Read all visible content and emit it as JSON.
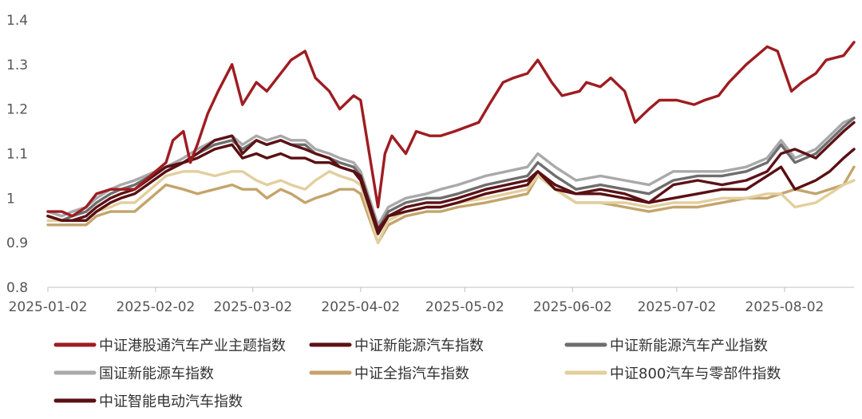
{
  "chart_data": {
    "type": "line",
    "title": "",
    "xlabel": "",
    "ylabel": "",
    "ylim": [
      0.8,
      1.4
    ],
    "yticks": [
      0.8,
      0.9,
      1,
      1.1,
      1.2,
      1.3,
      1.4
    ],
    "ytick_labels": [
      "0.8",
      "0.9",
      "1",
      "1.1",
      "1.2",
      "1.3",
      "1.4"
    ],
    "x_start": "2025-01-02",
    "x_end": "2025-08-22",
    "xtick_labels": [
      "2025-01-02",
      "2025-02-02",
      "2025-03-02",
      "2025-04-02",
      "2025-05-02",
      "2025-06-02",
      "2025-07-02",
      "2025-08-02"
    ],
    "legend_position": "bottom",
    "series": [
      {
        "name": "中证港股通汽车产业主题指数",
        "color": "#9e1c21",
        "x": [
          "2025-01-02",
          "2025-01-06",
          "2025-01-09",
          "2025-01-13",
          "2025-01-16",
          "2025-01-20",
          "2025-01-23",
          "2025-01-27",
          "2025-02-05",
          "2025-02-07",
          "2025-02-10",
          "2025-02-12",
          "2025-02-14",
          "2025-02-17",
          "2025-02-20",
          "2025-02-24",
          "2025-02-27",
          "2025-03-03",
          "2025-03-06",
          "2025-03-10",
          "2025-03-13",
          "2025-03-17",
          "2025-03-20",
          "2025-03-24",
          "2025-03-27",
          "2025-03-31",
          "2025-04-02",
          "2025-04-07",
          "2025-04-09",
          "2025-04-11",
          "2025-04-15",
          "2025-04-18",
          "2025-04-22",
          "2025-04-25",
          "2025-04-29",
          "2025-05-06",
          "2025-05-09",
          "2025-05-13",
          "2025-05-16",
          "2025-05-20",
          "2025-05-23",
          "2025-05-27",
          "2025-05-30",
          "2025-06-04",
          "2025-06-06",
          "2025-06-10",
          "2025-06-13",
          "2025-06-17",
          "2025-06-20",
          "2025-06-24",
          "2025-06-27",
          "2025-07-02",
          "2025-07-07",
          "2025-07-10",
          "2025-07-14",
          "2025-07-17",
          "2025-07-22",
          "2025-07-25",
          "2025-07-28",
          "2025-07-31",
          "2025-08-04",
          "2025-08-07",
          "2025-08-11",
          "2025-08-14",
          "2025-08-19",
          "2025-08-22"
        ],
        "y": [
          0.97,
          0.97,
          0.96,
          0.98,
          1.01,
          1.02,
          1.02,
          1.02,
          1.08,
          1.13,
          1.15,
          1.08,
          1.12,
          1.19,
          1.24,
          1.3,
          1.21,
          1.26,
          1.24,
          1.28,
          1.31,
          1.33,
          1.27,
          1.24,
          1.2,
          1.23,
          1.22,
          0.98,
          1.1,
          1.14,
          1.1,
          1.15,
          1.14,
          1.14,
          1.15,
          1.17,
          1.21,
          1.26,
          1.27,
          1.28,
          1.31,
          1.26,
          1.23,
          1.24,
          1.26,
          1.25,
          1.27,
          1.24,
          1.17,
          1.2,
          1.22,
          1.22,
          1.21,
          1.22,
          1.23,
          1.26,
          1.3,
          1.32,
          1.34,
          1.33,
          1.24,
          1.26,
          1.28,
          1.31,
          1.32,
          1.35
        ]
      },
      {
        "name": "中证新能源汽车指数",
        "color": "#5c1216",
        "x": [
          "2025-01-02",
          "2025-01-06",
          "2025-01-09",
          "2025-01-13",
          "2025-01-16",
          "2025-01-20",
          "2025-01-23",
          "2025-01-27",
          "2025-02-05",
          "2025-02-10",
          "2025-02-14",
          "2025-02-19",
          "2025-02-24",
          "2025-02-27",
          "2025-03-03",
          "2025-03-06",
          "2025-03-10",
          "2025-03-13",
          "2025-03-17",
          "2025-03-20",
          "2025-03-24",
          "2025-03-27",
          "2025-03-31",
          "2025-04-02",
          "2025-04-07",
          "2025-04-10",
          "2025-04-15",
          "2025-04-21",
          "2025-04-25",
          "2025-04-30",
          "2025-05-08",
          "2025-05-14",
          "2025-05-20",
          "2025-05-23",
          "2025-05-28",
          "2025-06-03",
          "2025-06-10",
          "2025-06-17",
          "2025-06-24",
          "2025-07-01",
          "2025-07-08",
          "2025-07-15",
          "2025-07-22",
          "2025-07-28",
          "2025-08-01",
          "2025-08-05",
          "2025-08-11",
          "2025-08-15",
          "2025-08-19",
          "2025-08-22"
        ],
        "y": [
          0.96,
          0.95,
          0.95,
          0.96,
          0.98,
          1,
          1.01,
          1.02,
          1.07,
          1.08,
          1.1,
          1.13,
          1.14,
          1.1,
          1.13,
          1.12,
          1.13,
          1.12,
          1.11,
          1.1,
          1.09,
          1.07,
          1.06,
          1.05,
          0.93,
          0.96,
          0.98,
          0.99,
          0.99,
          1,
          1.02,
          1.03,
          1.04,
          1.06,
          1.03,
          1.01,
          1.02,
          1.01,
          0.99,
          1.03,
          1.04,
          1.03,
          1.04,
          1.06,
          1.1,
          1.11,
          1.09,
          1.12,
          1.15,
          1.17
        ]
      },
      {
        "name": "中证新能源汽车产业指数",
        "color": "#6e6e6e",
        "x": [
          "2025-01-02",
          "2025-01-06",
          "2025-01-09",
          "2025-01-13",
          "2025-01-16",
          "2025-01-20",
          "2025-01-23",
          "2025-01-27",
          "2025-02-05",
          "2025-02-10",
          "2025-02-14",
          "2025-02-19",
          "2025-02-24",
          "2025-02-27",
          "2025-03-03",
          "2025-03-06",
          "2025-03-10",
          "2025-03-13",
          "2025-03-17",
          "2025-03-20",
          "2025-03-24",
          "2025-03-27",
          "2025-03-31",
          "2025-04-02",
          "2025-04-07",
          "2025-04-10",
          "2025-04-15",
          "2025-04-21",
          "2025-04-25",
          "2025-04-30",
          "2025-05-08",
          "2025-05-14",
          "2025-05-20",
          "2025-05-23",
          "2025-05-28",
          "2025-06-03",
          "2025-06-10",
          "2025-06-17",
          "2025-06-24",
          "2025-07-01",
          "2025-07-08",
          "2025-07-15",
          "2025-07-22",
          "2025-07-28",
          "2025-08-01",
          "2025-08-05",
          "2025-08-11",
          "2025-08-15",
          "2025-08-19",
          "2025-08-22"
        ],
        "y": [
          0.96,
          0.95,
          0.96,
          0.97,
          0.99,
          1.01,
          1.02,
          1.03,
          1.07,
          1.08,
          1.1,
          1.12,
          1.13,
          1.11,
          1.13,
          1.12,
          1.13,
          1.12,
          1.12,
          1.1,
          1.09,
          1.08,
          1.07,
          1.05,
          0.93,
          0.97,
          0.99,
          1,
          1,
          1.01,
          1.03,
          1.04,
          1.05,
          1.08,
          1.05,
          1.02,
          1.03,
          1.02,
          1.01,
          1.04,
          1.05,
          1.05,
          1.06,
          1.08,
          1.12,
          1.08,
          1.1,
          1.13,
          1.16,
          1.18
        ]
      },
      {
        "name": "国证新能源车指数",
        "color": "#a9a9a9",
        "x": [
          "2025-01-02",
          "2025-01-06",
          "2025-01-09",
          "2025-01-13",
          "2025-01-16",
          "2025-01-20",
          "2025-01-23",
          "2025-01-27",
          "2025-02-05",
          "2025-02-10",
          "2025-02-14",
          "2025-02-19",
          "2025-02-24",
          "2025-02-27",
          "2025-03-03",
          "2025-03-06",
          "2025-03-10",
          "2025-03-13",
          "2025-03-17",
          "2025-03-20",
          "2025-03-24",
          "2025-03-27",
          "2025-03-31",
          "2025-04-02",
          "2025-04-07",
          "2025-04-10",
          "2025-04-15",
          "2025-04-21",
          "2025-04-25",
          "2025-04-30",
          "2025-05-08",
          "2025-05-14",
          "2025-05-20",
          "2025-05-23",
          "2025-05-28",
          "2025-06-03",
          "2025-06-10",
          "2025-06-17",
          "2025-06-24",
          "2025-07-01",
          "2025-07-08",
          "2025-07-15",
          "2025-07-22",
          "2025-07-28",
          "2025-08-01",
          "2025-08-05",
          "2025-08-11",
          "2025-08-15",
          "2025-08-19",
          "2025-08-22"
        ],
        "y": [
          0.97,
          0.96,
          0.97,
          0.98,
          1,
          1.02,
          1.03,
          1.04,
          1.07,
          1.09,
          1.11,
          1.13,
          1.14,
          1.12,
          1.14,
          1.13,
          1.14,
          1.13,
          1.13,
          1.11,
          1.1,
          1.09,
          1.08,
          1.06,
          0.94,
          0.98,
          1,
          1.01,
          1.02,
          1.03,
          1.05,
          1.06,
          1.07,
          1.1,
          1.07,
          1.04,
          1.05,
          1.04,
          1.03,
          1.06,
          1.06,
          1.06,
          1.07,
          1.09,
          1.13,
          1.09,
          1.11,
          1.14,
          1.17,
          1.18
        ]
      },
      {
        "name": "中证全指汽车指数",
        "color": "#c4a46c",
        "x": [
          "2025-01-02",
          "2025-01-06",
          "2025-01-09",
          "2025-01-13",
          "2025-01-16",
          "2025-01-20",
          "2025-01-23",
          "2025-01-27",
          "2025-02-05",
          "2025-02-10",
          "2025-02-14",
          "2025-02-19",
          "2025-02-24",
          "2025-02-27",
          "2025-03-03",
          "2025-03-06",
          "2025-03-10",
          "2025-03-13",
          "2025-03-17",
          "2025-03-20",
          "2025-03-24",
          "2025-03-27",
          "2025-03-31",
          "2025-04-02",
          "2025-04-07",
          "2025-04-10",
          "2025-04-15",
          "2025-04-21",
          "2025-04-25",
          "2025-04-30",
          "2025-05-08",
          "2025-05-14",
          "2025-05-20",
          "2025-05-23",
          "2025-05-28",
          "2025-06-03",
          "2025-06-10",
          "2025-06-17",
          "2025-06-24",
          "2025-07-01",
          "2025-07-08",
          "2025-07-15",
          "2025-07-22",
          "2025-07-28",
          "2025-08-01",
          "2025-08-05",
          "2025-08-11",
          "2025-08-15",
          "2025-08-19",
          "2025-08-22"
        ],
        "y": [
          0.94,
          0.94,
          0.94,
          0.94,
          0.96,
          0.97,
          0.97,
          0.97,
          1.03,
          1.02,
          1.01,
          1.02,
          1.03,
          1.02,
          1.02,
          1,
          1.02,
          1.01,
          0.99,
          1,
          1.01,
          1.02,
          1.02,
          1.01,
          0.9,
          0.94,
          0.96,
          0.97,
          0.97,
          0.98,
          0.99,
          1,
          1.01,
          1.05,
          1.02,
          0.99,
          0.99,
          0.98,
          0.97,
          0.98,
          0.98,
          0.99,
          1,
          1,
          1.01,
          1.02,
          1.01,
          1.02,
          1.03,
          1.07
        ]
      },
      {
        "name": "中证800汽车与零部件指数",
        "color": "#e2cf9e",
        "x": [
          "2025-01-02",
          "2025-01-06",
          "2025-01-09",
          "2025-01-13",
          "2025-01-16",
          "2025-01-20",
          "2025-01-23",
          "2025-01-27",
          "2025-02-05",
          "2025-02-10",
          "2025-02-14",
          "2025-02-19",
          "2025-02-24",
          "2025-02-27",
          "2025-03-03",
          "2025-03-06",
          "2025-03-10",
          "2025-03-13",
          "2025-03-17",
          "2025-03-20",
          "2025-03-24",
          "2025-03-27",
          "2025-03-31",
          "2025-04-02",
          "2025-04-07",
          "2025-04-10",
          "2025-04-15",
          "2025-04-21",
          "2025-04-25",
          "2025-04-30",
          "2025-05-08",
          "2025-05-14",
          "2025-05-20",
          "2025-05-23",
          "2025-05-28",
          "2025-06-03",
          "2025-06-10",
          "2025-06-17",
          "2025-06-24",
          "2025-07-01",
          "2025-07-08",
          "2025-07-15",
          "2025-07-22",
          "2025-07-28",
          "2025-08-01",
          "2025-08-05",
          "2025-08-11",
          "2025-08-15",
          "2025-08-19",
          "2025-08-22"
        ],
        "y": [
          0.95,
          0.95,
          0.95,
          0.95,
          0.97,
          0.98,
          0.99,
          0.99,
          1.05,
          1.06,
          1.06,
          1.05,
          1.06,
          1.06,
          1.04,
          1.03,
          1.04,
          1.03,
          1.02,
          1.04,
          1.06,
          1.05,
          1.04,
          1.03,
          0.9,
          0.95,
          0.97,
          0.98,
          0.98,
          0.99,
          1,
          1.01,
          1.02,
          1.05,
          1.02,
          0.99,
          0.99,
          0.99,
          0.98,
          0.99,
          0.99,
          1,
          1,
          1.01,
          1.01,
          0.98,
          0.99,
          1.01,
          1.03,
          1.04
        ]
      },
      {
        "name": "中证智能电动汽车指数",
        "color": "#5a0f12",
        "x": [
          "2025-01-02",
          "2025-01-06",
          "2025-01-09",
          "2025-01-13",
          "2025-01-16",
          "2025-01-20",
          "2025-01-23",
          "2025-01-27",
          "2025-02-05",
          "2025-02-10",
          "2025-02-14",
          "2025-02-19",
          "2025-02-24",
          "2025-02-27",
          "2025-03-03",
          "2025-03-06",
          "2025-03-10",
          "2025-03-13",
          "2025-03-17",
          "2025-03-20",
          "2025-03-24",
          "2025-03-27",
          "2025-03-31",
          "2025-04-02",
          "2025-04-07",
          "2025-04-10",
          "2025-04-15",
          "2025-04-21",
          "2025-04-25",
          "2025-04-30",
          "2025-05-08",
          "2025-05-14",
          "2025-05-20",
          "2025-05-23",
          "2025-05-28",
          "2025-06-03",
          "2025-06-10",
          "2025-06-17",
          "2025-06-24",
          "2025-07-01",
          "2025-07-08",
          "2025-07-15",
          "2025-07-22",
          "2025-07-28",
          "2025-08-01",
          "2025-08-05",
          "2025-08-11",
          "2025-08-15",
          "2025-08-19",
          "2025-08-22"
        ],
        "y": [
          0.96,
          0.95,
          0.95,
          0.95,
          0.97,
          0.99,
          1,
          1.01,
          1.06,
          1.08,
          1.09,
          1.11,
          1.12,
          1.09,
          1.1,
          1.09,
          1.1,
          1.09,
          1.09,
          1.08,
          1.08,
          1.07,
          1.06,
          1.04,
          0.92,
          0.96,
          0.97,
          0.98,
          0.98,
          0.99,
          1.01,
          1.02,
          1.03,
          1.06,
          1.02,
          1.01,
          1.01,
          1,
          0.99,
          1,
          1.01,
          1.02,
          1.02,
          1.05,
          1.07,
          1.02,
          1.04,
          1.06,
          1.09,
          1.11
        ]
      }
    ]
  }
}
